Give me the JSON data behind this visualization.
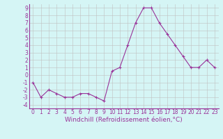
{
  "x": [
    0,
    1,
    2,
    3,
    4,
    5,
    6,
    7,
    8,
    9,
    10,
    11,
    12,
    13,
    14,
    15,
    16,
    17,
    18,
    19,
    20,
    21,
    22,
    23
  ],
  "y": [
    -1,
    -3,
    -2,
    -2.5,
    -3,
    -3,
    -2.5,
    -2.5,
    -3,
    -3.5,
    0.5,
    1,
    4,
    7,
    9,
    9,
    7,
    5.5,
    4,
    2.5,
    1,
    1,
    2,
    1
  ],
  "line_color": "#993399",
  "marker_color": "#993399",
  "bg_color": "#d5f5f5",
  "grid_color": "#c0c0c0",
  "xlabel": "Windchill (Refroidissement éolien,°C)",
  "xlim": [
    -0.5,
    23.5
  ],
  "ylim": [
    -4.5,
    9.5
  ],
  "yticks": [
    -4,
    -3,
    -2,
    -1,
    0,
    1,
    2,
    3,
    4,
    5,
    6,
    7,
    8,
    9
  ],
  "xticks": [
    0,
    1,
    2,
    3,
    4,
    5,
    6,
    7,
    8,
    9,
    10,
    11,
    12,
    13,
    14,
    15,
    16,
    17,
    18,
    19,
    20,
    21,
    22,
    23
  ],
  "font_color": "#993399",
  "tick_fontsize": 5.5,
  "xlabel_fontsize": 6.5
}
